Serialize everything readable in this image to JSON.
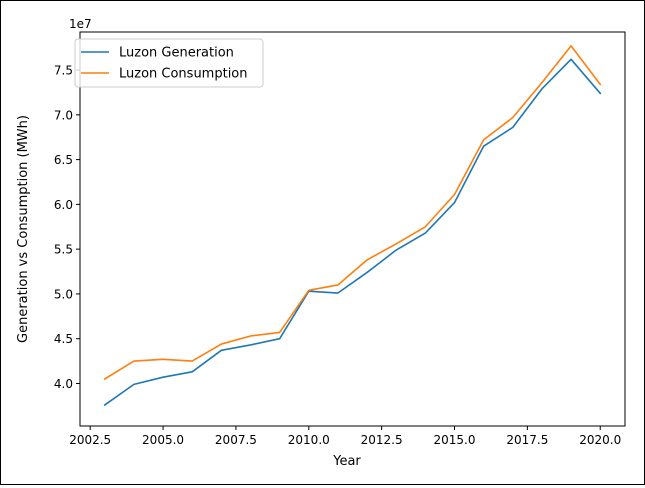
{
  "colors": {
    "generation": "#1f77b4",
    "consumption": "#ff7f0e"
  },
  "chart_data": {
    "type": "line",
    "xlabel": "Year",
    "ylabel": "Generation vs Consumption (MWh)",
    "y_offset_label": "1e7",
    "xlim": [
      2002.15,
      2020.85
    ],
    "ylim": [
      35250000,
      79250000
    ],
    "x_ticks": [
      2002.5,
      2005.0,
      2007.5,
      2010.0,
      2012.5,
      2015.0,
      2017.5,
      2020.0
    ],
    "x_tick_labels": [
      "2002.5",
      "2005.0",
      "2007.5",
      "2010.0",
      "2012.5",
      "2015.0",
      "2017.5",
      "2020.0"
    ],
    "y_ticks": [
      40000000,
      45000000,
      50000000,
      55000000,
      60000000,
      65000000,
      70000000,
      75000000
    ],
    "y_tick_labels": [
      "4.0",
      "4.5",
      "5.0",
      "5.5",
      "6.0",
      "6.5",
      "7.0",
      "7.5"
    ],
    "legend_position": "top-left",
    "grid": false,
    "x": [
      2003,
      2004,
      2005,
      2006,
      2007,
      2008,
      2009,
      2010,
      2011,
      2012,
      2013,
      2014,
      2015,
      2016,
      2017,
      2018,
      2019,
      2020
    ],
    "series": [
      {
        "name": "Luzon Generation",
        "color_key": "generation",
        "values": [
          37600000,
          39900000,
          40700000,
          41300000,
          43700000,
          44300000,
          45000000,
          50300000,
          50100000,
          52400000,
          54900000,
          56800000,
          60200000,
          66500000,
          68600000,
          72900000,
          76200000,
          72400000
        ]
      },
      {
        "name": "Luzon Consumption",
        "color_key": "consumption",
        "values": [
          40500000,
          42500000,
          42700000,
          42500000,
          44400000,
          45300000,
          45700000,
          50400000,
          51000000,
          53800000,
          55600000,
          57500000,
          61100000,
          67200000,
          69700000,
          73600000,
          77700000,
          73400000
        ]
      }
    ]
  }
}
